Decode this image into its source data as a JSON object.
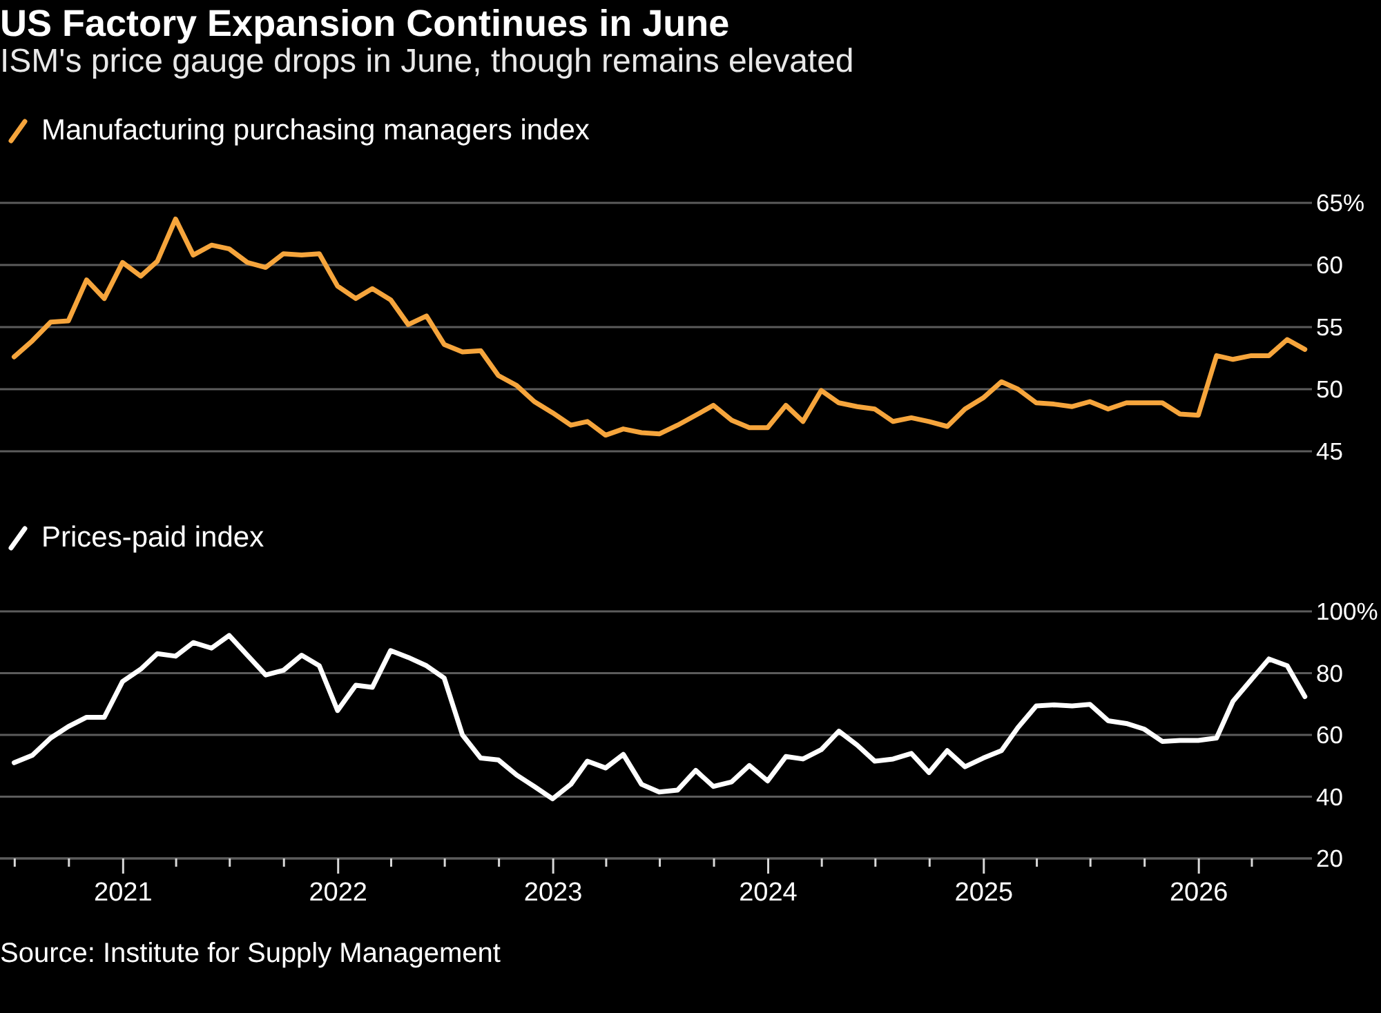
{
  "chart_data": [
    {
      "type": "line",
      "title": "US Factory Expansion Continues in June",
      "subtitle": "ISM's price gauge drops in June, though remains elevated",
      "x": [
        "2020-06-30",
        "2020-07-31",
        "2020-08-31",
        "2020-09-30",
        "2020-10-31",
        "2020-11-30",
        "2020-12-31",
        "2021-01-31",
        "2021-02-28",
        "2021-03-31",
        "2021-04-30",
        "2021-05-31",
        "2021-06-30",
        "2021-07-31",
        "2021-08-31",
        "2021-09-30",
        "2021-10-31",
        "2021-11-30",
        "2021-12-31",
        "2022-01-31",
        "2022-02-28",
        "2022-03-31",
        "2022-04-30",
        "2022-05-31",
        "2022-06-30",
        "2022-07-31",
        "2022-08-31",
        "2022-09-30",
        "2022-10-31",
        "2022-11-30",
        "2022-12-31",
        "2023-01-31",
        "2023-02-28",
        "2023-03-31",
        "2023-04-30",
        "2023-05-31",
        "2023-06-30",
        "2023-07-31",
        "2023-08-31",
        "2023-09-30",
        "2023-10-31",
        "2023-11-30",
        "2023-12-31",
        "2024-01-31",
        "2024-02-29",
        "2024-03-31",
        "2024-04-30",
        "2024-05-31",
        "2024-06-30",
        "2024-07-31",
        "2024-08-31",
        "2024-09-30",
        "2024-10-31",
        "2024-11-30",
        "2024-12-31",
        "2025-01-31",
        "2025-02-28",
        "2025-03-31",
        "2025-04-30",
        "2025-05-31",
        "2025-06-30",
        "2025-07-31",
        "2025-08-31",
        "2025-09-30",
        "2025-10-31",
        "2025-11-30",
        "2025-12-31",
        "2026-01-31",
        "2026-02-28",
        "2026-03-31",
        "2026-04-30",
        "2026-05-31",
        "2026-06-30"
      ],
      "xlim": [
        "2020-06-06",
        "2026-07-12"
      ],
      "ylim": [
        45,
        65
      ],
      "yticks": [
        45,
        50,
        55,
        60,
        {
          "value": 65,
          "label": "65%"
        }
      ],
      "tick_labels": "y",
      "grid": "y",
      "legend": "top left",
      "series": [
        {
          "name": "Manufacturing purchasing managers index",
          "color": "#f6a53c",
          "values": [
            52.6,
            53.9,
            55.4,
            55.5,
            58.8,
            57.3,
            60.2,
            59.1,
            60.3,
            63.7,
            60.8,
            61.6,
            61.3,
            60.2,
            59.8,
            60.9,
            60.8,
            60.9,
            58.3,
            57.3,
            58.1,
            57.2,
            55.2,
            55.9,
            53.6,
            53.0,
            53.1,
            51.1,
            50.3,
            49.0,
            48.1,
            47.1,
            47.4,
            46.3,
            46.8,
            46.5,
            46.4,
            47.1,
            47.9,
            48.7,
            47.5,
            46.9,
            46.9,
            48.7,
            47.4,
            49.9,
            48.9,
            48.6,
            48.4,
            47.4,
            47.7,
            47.4,
            47.0,
            48.4,
            49.3,
            50.6,
            50.0,
            48.9,
            48.8,
            48.6,
            49.0,
            48.4,
            48.9,
            48.9,
            48.9,
            48.0,
            47.9,
            52.7,
            52.4,
            52.7,
            52.7,
            54.0,
            53.2
          ]
        }
      ]
    },
    {
      "type": "line",
      "x": [
        "2020-06-30",
        "2020-07-31",
        "2020-08-31",
        "2020-09-30",
        "2020-10-31",
        "2020-11-30",
        "2020-12-31",
        "2021-01-31",
        "2021-02-28",
        "2021-03-31",
        "2021-04-30",
        "2021-05-31",
        "2021-06-30",
        "2021-07-31",
        "2021-08-31",
        "2021-09-30",
        "2021-10-31",
        "2021-11-30",
        "2021-12-31",
        "2022-01-31",
        "2022-02-28",
        "2022-03-31",
        "2022-04-30",
        "2022-05-31",
        "2022-06-30",
        "2022-07-31",
        "2022-08-31",
        "2022-09-30",
        "2022-10-31",
        "2022-11-30",
        "2022-12-31",
        "2023-01-31",
        "2023-02-28",
        "2023-03-31",
        "2023-04-30",
        "2023-05-31",
        "2023-06-30",
        "2023-07-31",
        "2023-08-31",
        "2023-09-30",
        "2023-10-31",
        "2023-11-30",
        "2023-12-31",
        "2024-01-31",
        "2024-02-29",
        "2024-03-31",
        "2024-04-30",
        "2024-05-31",
        "2024-06-30",
        "2024-07-31",
        "2024-08-31",
        "2024-09-30",
        "2024-10-31",
        "2024-11-30",
        "2024-12-31",
        "2025-01-31",
        "2025-02-28",
        "2025-03-31",
        "2025-04-30",
        "2025-05-31",
        "2025-06-30",
        "2025-07-31",
        "2025-08-31",
        "2025-09-30",
        "2025-10-31",
        "2025-11-30",
        "2025-12-31",
        "2026-01-31",
        "2026-02-28",
        "2026-03-31",
        "2026-04-30",
        "2026-05-31",
        "2026-06-30"
      ],
      "xlim": [
        "2020-06-06",
        "2026-07-12"
      ],
      "xticks": [
        {
          "value": "2020-07",
          "label": null
        },
        {
          "value": "2020-10",
          "label": null
        },
        "2021",
        {
          "value": "2021-04",
          "label": null
        },
        {
          "value": "2021-07",
          "label": null
        },
        {
          "value": "2021-10",
          "label": null
        },
        "2022",
        {
          "value": "2022-04",
          "label": null
        },
        {
          "value": "2022-07",
          "label": null
        },
        {
          "value": "2022-10",
          "label": null
        },
        "2023",
        {
          "value": "2023-04",
          "label": null
        },
        {
          "value": "2023-07",
          "label": null
        },
        {
          "value": "2023-10",
          "label": null
        },
        "2024",
        {
          "value": "2024-04",
          "label": null
        },
        {
          "value": "2024-07",
          "label": null
        },
        {
          "value": "2024-10",
          "label": null
        },
        "2025",
        {
          "value": "2025-04",
          "label": null
        },
        {
          "value": "2025-07",
          "label": null
        },
        {
          "value": "2025-10",
          "label": null
        },
        "2026",
        {
          "value": "2026-04",
          "label": null
        }
      ],
      "ylim": [
        20,
        100
      ],
      "yticks": [
        20,
        40,
        60,
        80,
        {
          "value": 100,
          "label": "100%"
        }
      ],
      "grid": "y",
      "legend": "top left",
      "series": [
        {
          "name": "Prices-paid index",
          "color": "#ffffff",
          "values": [
            51.0,
            53.4,
            59.0,
            62.7,
            65.7,
            65.7,
            77.3,
            81.3,
            86.3,
            85.5,
            89.9,
            88.1,
            92.2,
            85.8,
            79.4,
            80.9,
            85.8,
            82.4,
            67.9,
            76.1,
            75.4,
            87.3,
            85.1,
            82.4,
            78.4,
            60.0,
            52.5,
            51.9,
            47.0,
            43.3,
            39.3,
            44.0,
            51.5,
            49.3,
            53.7,
            44.0,
            41.5,
            42.1,
            48.5,
            43.3,
            44.8,
            50.1,
            45.1,
            53.0,
            52.2,
            55.2,
            61.2,
            56.7,
            51.5,
            52.2,
            54.0,
            47.8,
            54.9,
            49.7,
            52.5,
            54.9,
            62.4,
            69.4,
            69.7,
            69.4,
            69.9,
            64.6,
            63.7,
            61.9,
            57.9,
            58.2,
            58.2,
            59.0,
            70.9,
            77.9,
            84.6,
            82.4,
            72.4
          ]
        }
      ],
      "annotations": [
        "Source: Institute for Supply Management"
      ]
    }
  ]
}
